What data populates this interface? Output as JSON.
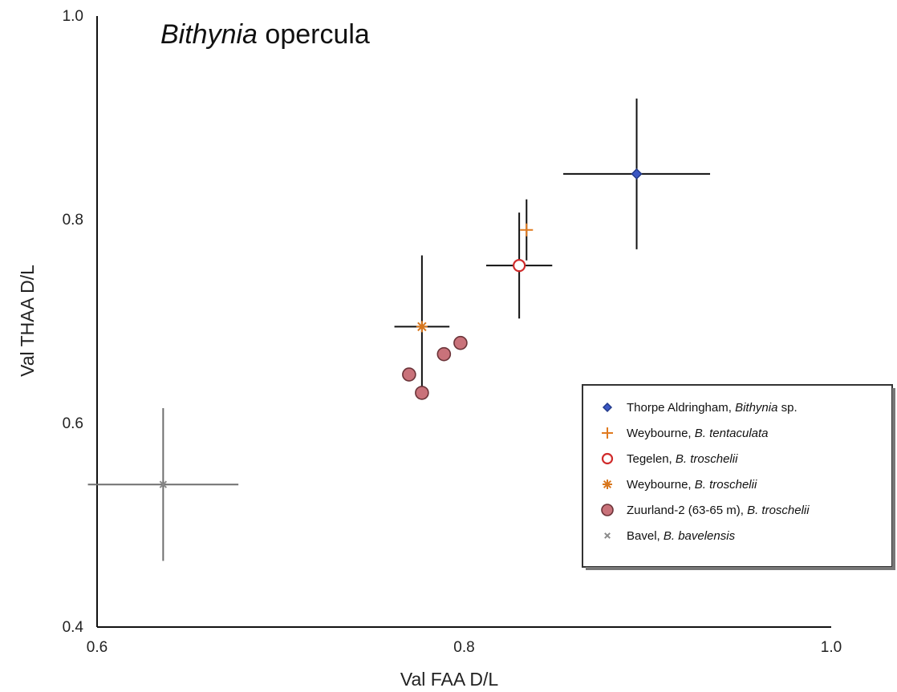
{
  "chart_data": {
    "type": "scatter",
    "title_italic": "Bithynia",
    "title_rest": " opercula",
    "xlabel": "Val FAA D/L",
    "ylabel": "Val THAA D/L",
    "xlim": [
      0.6,
      1.0
    ],
    "ylim": [
      0.4,
      1.0
    ],
    "xticks": [
      "0.6",
      "0.8",
      "1.0"
    ],
    "yticks": [
      "0.4",
      "0.6",
      "0.8",
      "1.0"
    ],
    "grid": false,
    "legend_position": "right",
    "series": [
      {
        "site": "Thorpe Aldringham, ",
        "species": "Bithynia",
        "suffix": " sp.",
        "marker": "diamond",
        "color": "#3b57c4",
        "points": [
          {
            "x": 0.894,
            "y": 0.845,
            "xerr": 0.04,
            "yerr": 0.074
          }
        ]
      },
      {
        "site": "Weybourne, ",
        "species": "B. tentaculata",
        "suffix": "",
        "marker": "plus",
        "color": "#e07a1f",
        "points": [
          {
            "x": 0.834,
            "y": 0.79,
            "xerr": 0.0,
            "yerr": 0.03
          }
        ]
      },
      {
        "site": "Tegelen, ",
        "species": "B. troschelii",
        "suffix": "",
        "marker": "circle-open",
        "color": "#d02b2b",
        "points": [
          {
            "x": 0.83,
            "y": 0.755,
            "xerr": 0.018,
            "yerr": 0.052
          }
        ]
      },
      {
        "site": "Weybourne, ",
        "species": "B. troschelii",
        "suffix": "",
        "marker": "asterisk",
        "color": "#d8771e",
        "points": [
          {
            "x": 0.777,
            "y": 0.695,
            "xerr": 0.015,
            "yerr": 0.07
          }
        ]
      },
      {
        "site": "Zuurland-2 (63-65 m), ",
        "species": "B. troschelii",
        "suffix": "",
        "marker": "circle-filled",
        "color": "#c9727a",
        "points": [
          {
            "x": 0.77,
            "y": 0.648
          },
          {
            "x": 0.777,
            "y": 0.63
          },
          {
            "x": 0.789,
            "y": 0.668
          },
          {
            "x": 0.798,
            "y": 0.679
          }
        ]
      },
      {
        "site": "Bavel, ",
        "species": "B. bavelensis",
        "suffix": "",
        "marker": "cross",
        "color": "#8a8a8a",
        "points": [
          {
            "x": 0.636,
            "y": 0.54,
            "xerr": 0.041,
            "yerr": 0.075
          }
        ]
      }
    ]
  }
}
